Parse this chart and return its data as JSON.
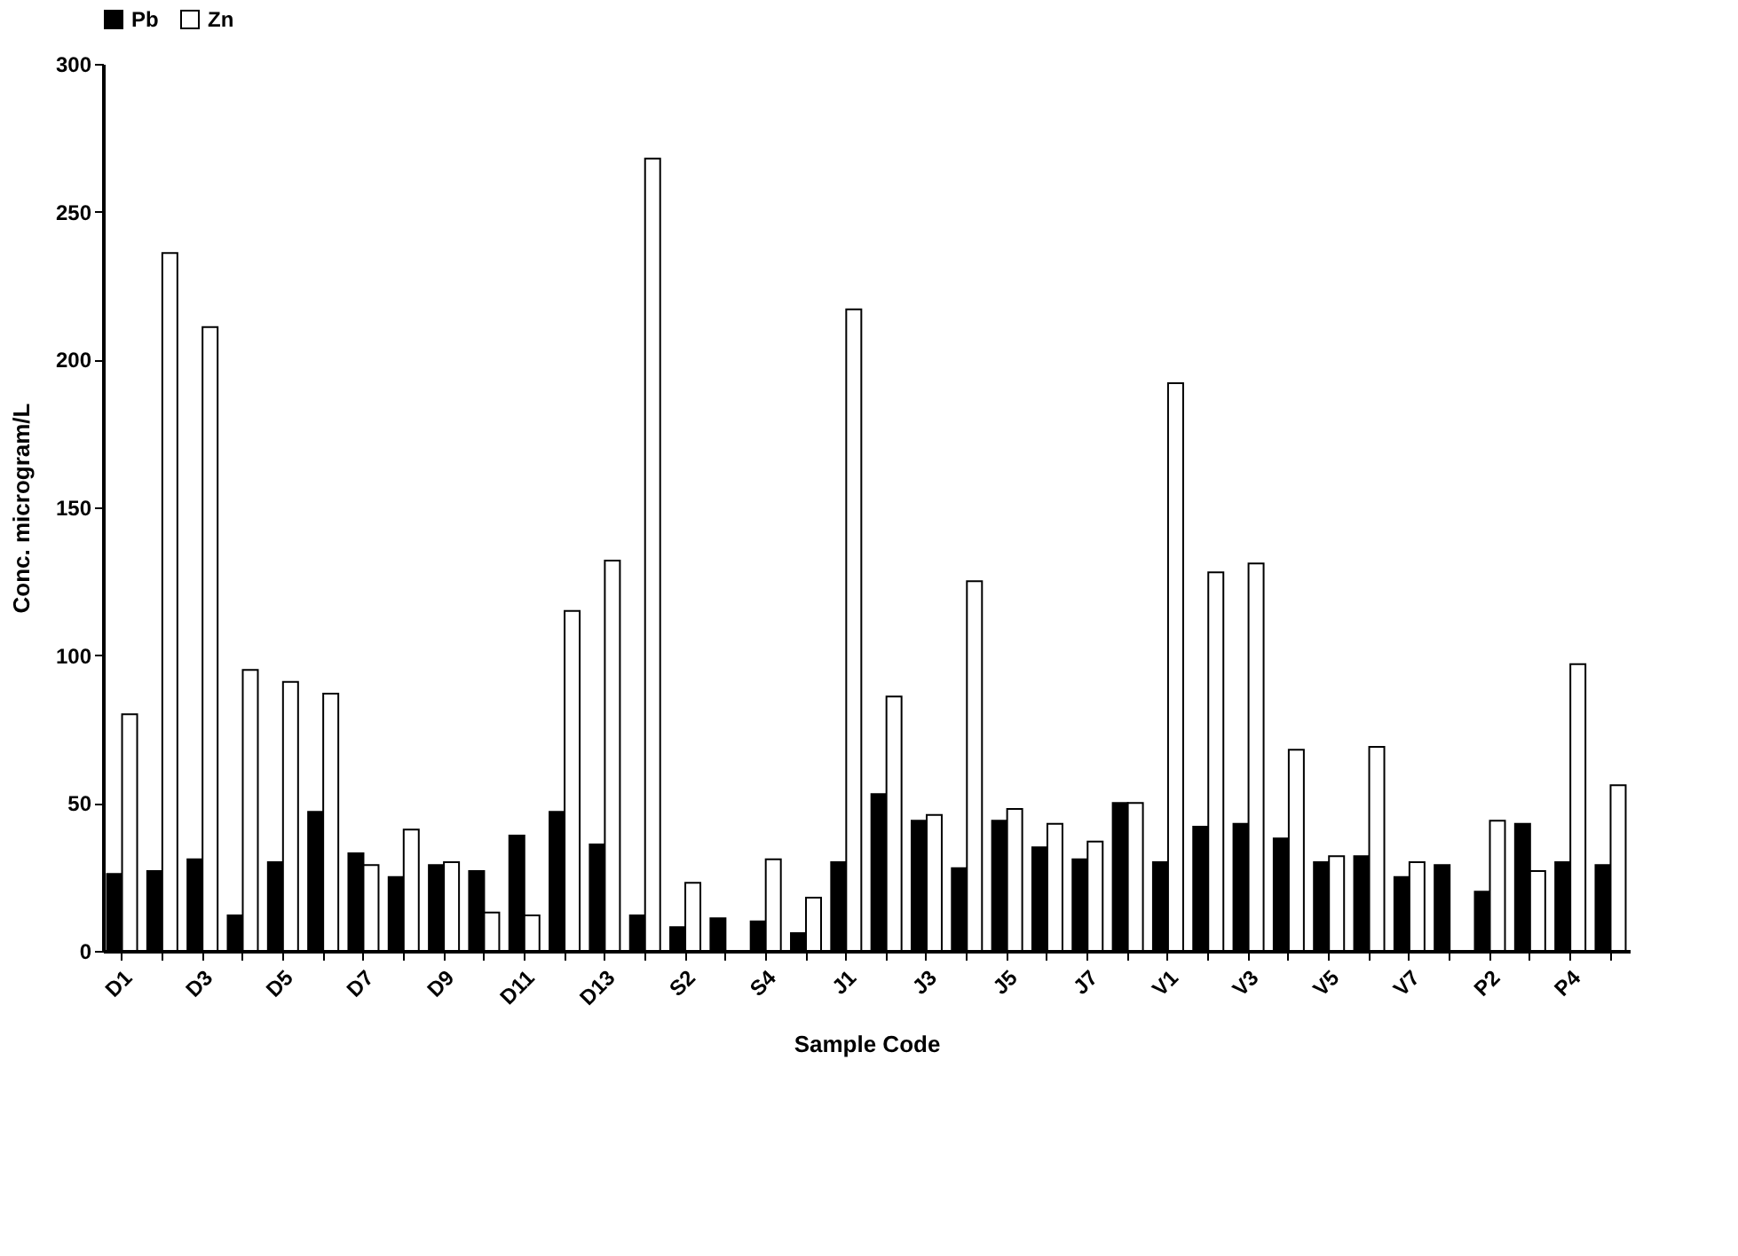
{
  "chart_data": {
    "type": "bar",
    "xlabel": "Sample Code",
    "ylabel": "Conc. microgram/L",
    "categories": [
      "D1",
      null,
      "D3",
      null,
      "D5",
      null,
      "D7",
      null,
      "D9",
      null,
      "D11",
      null,
      "D13",
      null,
      "S2",
      null,
      "S4",
      null,
      "J1",
      null,
      "J3",
      null,
      "J5",
      null,
      "J7",
      null,
      "V1",
      null,
      "V3",
      null,
      "V5",
      null,
      "V7",
      null,
      "P2",
      null,
      "P4",
      null
    ],
    "series": [
      {
        "name": "Pb",
        "color": "#000000",
        "values": [
          26,
          27,
          31,
          12,
          30,
          47,
          33,
          25,
          29,
          27,
          39,
          47,
          36,
          12,
          8,
          11,
          10,
          6,
          30,
          53,
          44,
          28,
          44,
          35,
          31,
          50,
          30,
          42,
          43,
          38,
          30,
          32,
          25,
          29,
          20,
          43,
          30,
          29
        ]
      },
      {
        "name": "Zn",
        "color": "#ffffff",
        "values": [
          80,
          236,
          211,
          95,
          91,
          87,
          29,
          41,
          30,
          13,
          12,
          115,
          132,
          268,
          23,
          null,
          31,
          18,
          217,
          86,
          46,
          125,
          48,
          43,
          37,
          50,
          192,
          128,
          131,
          68,
          32,
          69,
          30,
          null,
          44,
          27,
          97,
          56
        ]
      }
    ],
    "ylim": [
      0,
      300
    ],
    "yticks": [
      0,
      50,
      100,
      150,
      200,
      250,
      300
    ],
    "grid": false,
    "legend": "top"
  }
}
